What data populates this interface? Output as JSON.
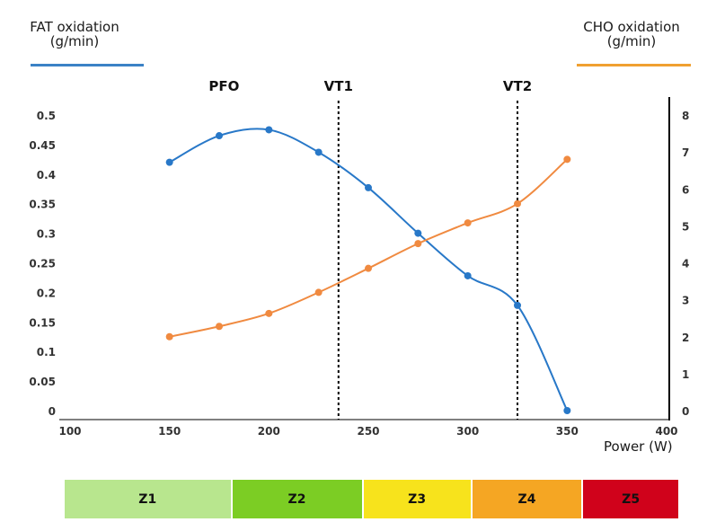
{
  "left_axis_title": "FAT oxidation\n(g/min)",
  "right_axis_title": "CHO oxidation\n(g/min)",
  "xlabel": "Power (W)",
  "colors": {
    "fat": "#3b82c6",
    "cho": "#f0a030"
  },
  "chart_data": {
    "type": "line",
    "xlim": [
      100,
      400
    ],
    "x_ticks": [
      "100",
      "150",
      "200",
      "250",
      "300",
      "350",
      "400"
    ],
    "y_left": {
      "ylim": [
        0,
        0.5
      ],
      "ticks": [
        "0",
        "0.05",
        "0.1",
        "0.15",
        "0.2",
        "0.25",
        "0.3",
        "0.35",
        "0.4",
        "0.45",
        "0.5"
      ]
    },
    "y_right": {
      "ylim": [
        0,
        8
      ],
      "ticks": [
        "0",
        "1",
        "2",
        "3",
        "4",
        "5",
        "6",
        "7",
        "8"
      ]
    },
    "series": [
      {
        "axis": "left",
        "color": "#2878c8",
        "points": [
          [
            150,
            0.42
          ],
          [
            175,
            0.465
          ],
          [
            200,
            0.475
          ],
          [
            225,
            0.437
          ],
          [
            250,
            0.377
          ],
          [
            275,
            0.3
          ],
          [
            300,
            0.228
          ],
          [
            325,
            0.178
          ],
          [
            350,
            0.0
          ]
        ]
      },
      {
        "axis": "right",
        "color": "#f08a40",
        "points": [
          [
            150,
            2.0
          ],
          [
            175,
            2.28
          ],
          [
            200,
            2.63
          ],
          [
            225,
            3.2
          ],
          [
            250,
            3.85
          ],
          [
            275,
            4.52
          ],
          [
            300,
            5.08
          ],
          [
            325,
            5.6
          ],
          [
            350,
            6.8
          ]
        ]
      }
    ],
    "annotations": [
      {
        "label": "PFO",
        "x": 200
      },
      {
        "label": "VT1",
        "x": 235
      },
      {
        "label": "VT2",
        "x": 325
      }
    ]
  },
  "zones": [
    {
      "label": "Z1",
      "color": "#b8e68e",
      "from": 100,
      "to": 182
    },
    {
      "label": "Z2",
      "color": "#7ccd24",
      "from": 182,
      "to": 246
    },
    {
      "label": "Z3",
      "color": "#f7e31c",
      "from": 246,
      "to": 299
    },
    {
      "label": "Z4",
      "color": "#f5a623",
      "from": 299,
      "to": 353
    },
    {
      "label": "Z5",
      "color": "#d0021b",
      "from": 353,
      "to": 400
    }
  ]
}
